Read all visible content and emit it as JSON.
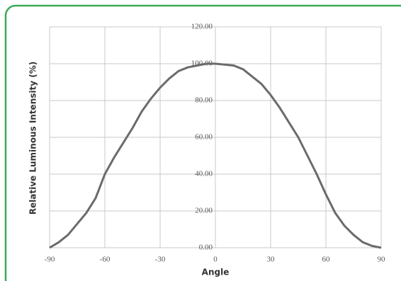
{
  "chart_data": {
    "type": "line",
    "x_label": "Angle",
    "y_label": "Relative Luminous Intensity (%)",
    "x": [
      -90,
      -85,
      -80,
      -75,
      -70,
      -65,
      -60,
      -55,
      -50,
      -45,
      -40,
      -35,
      -30,
      -25,
      -20,
      -15,
      -10,
      -5,
      0,
      5,
      10,
      15,
      20,
      25,
      30,
      35,
      40,
      45,
      50,
      55,
      60,
      65,
      70,
      75,
      80,
      85,
      90
    ],
    "series": [
      {
        "color": "#6b6b6b",
        "values": [
          0,
          3,
          7,
          13,
          19,
          27,
          40,
          49,
          57,
          65,
          74,
          81,
          87,
          92,
          96,
          98,
          99,
          100,
          100,
          99.5,
          99,
          97,
          93,
          89,
          83,
          76,
          68,
          60,
          50,
          40,
          29,
          19,
          12,
          7,
          3,
          1,
          0
        ]
      }
    ],
    "xlim": [
      -90,
      90
    ],
    "xticks": [
      -90,
      -60,
      -30,
      0,
      30,
      60,
      90
    ],
    "ylim": [
      0,
      120
    ],
    "yticks": [
      {
        "value": 0,
        "label": "0.00"
      },
      {
        "value": 20,
        "label": "20.00"
      },
      {
        "value": 40,
        "label": "40.00"
      },
      {
        "value": 60,
        "label": "60.00"
      },
      {
        "value": 80,
        "label": "80.00"
      },
      {
        "value": 100,
        "label": "100.00"
      },
      {
        "value": 120,
        "label": "120.00"
      }
    ],
    "grid": true
  }
}
